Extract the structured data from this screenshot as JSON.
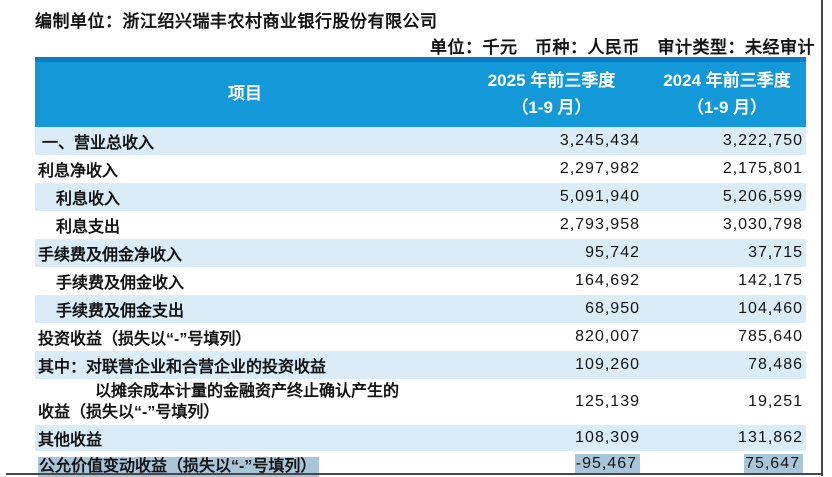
{
  "page": {
    "prepared_by": "编制单位：浙江绍兴瑞丰农村商业银行股份有限公司",
    "meta_line": "单位：千元　币种：人民币　审计类型：未经审计"
  },
  "table": {
    "header": {
      "item": "项目",
      "col2025_line1": "2025 年前三季度",
      "col2025_line2": "（1-9 月）",
      "col2024_line1": "2024 年前三季度",
      "col2024_line2": "（1-9 月）"
    },
    "rows": [
      {
        "label": "一、营业总收入",
        "v2025": "3,245,434",
        "v2024": "3,222,750"
      },
      {
        "label": "利息净收入",
        "v2025": "2,297,982",
        "v2024": "2,175,801"
      },
      {
        "label": "利息收入",
        "v2025": "5,091,940",
        "v2024": "5,206,599"
      },
      {
        "label": "利息支出",
        "v2025": "2,793,958",
        "v2024": "3,030,798"
      },
      {
        "label": "手续费及佣金净收入",
        "v2025": "95,742",
        "v2024": "37,715"
      },
      {
        "label": "手续费及佣金收入",
        "v2025": "164,692",
        "v2024": "142,175"
      },
      {
        "label": "手续费及佣金支出",
        "v2025": "68,950",
        "v2024": "104,460"
      },
      {
        "label": "投资收益（损失以“-”号填列）",
        "v2025": "820,007",
        "v2024": "785,640"
      },
      {
        "label": "其中：对联营企业和合营企业的投资收益",
        "v2025": "109,260",
        "v2024": "78,486"
      },
      {
        "label": "以摊余成本计量的金融资产终止确认产生的",
        "label2": "收益（损失以“-”号填列）",
        "v2025": "125,139",
        "v2024": "19,251"
      },
      {
        "label": "其他收益",
        "v2025": "108,309",
        "v2024": "131,862"
      },
      {
        "label": "公允价值变动收益（损失以“-”号填列）",
        "v2025": "-95,467",
        "v2024": "75,647"
      }
    ],
    "colors": {
      "header_blue": "#1398d8",
      "header_top_border": "#0d7ec2",
      "stripe_blue": "#d9ecf8",
      "selection_highlight": "#a9c6d9",
      "text": "#141414"
    }
  }
}
